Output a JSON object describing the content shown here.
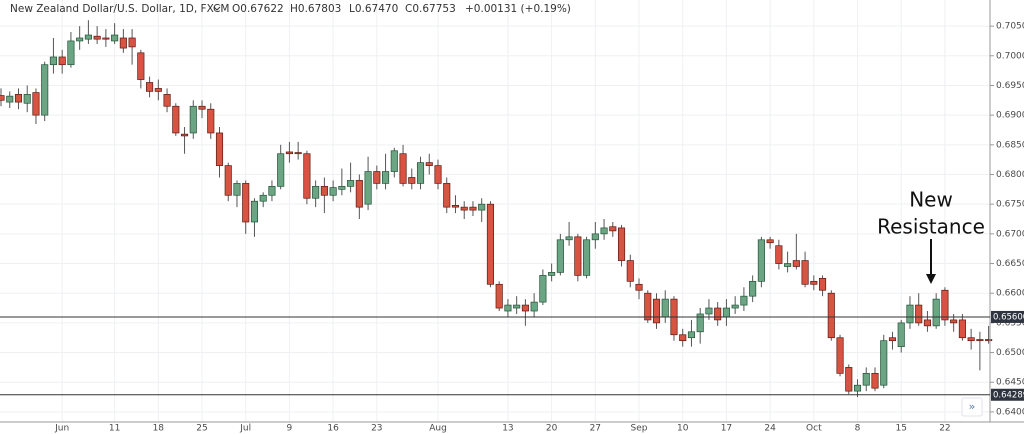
{
  "chart_data": {
    "type": "candlestick",
    "symbol": "New Zealand Dollar/U.S. Dollar, 1D, FXCM",
    "ohlc_header": [
      "O0.67622",
      "H0.67803",
      "L0.67470",
      "C0.67753",
      "+0.00131 (+0.19%)"
    ],
    "annotation": [
      "New",
      "Resistance"
    ],
    "categories": [
      null,
      null,
      null,
      null,
      null,
      null,
      null,
      "Jun",
      null,
      null,
      null,
      null,
      null,
      "11",
      null,
      null,
      null,
      null,
      "18",
      null,
      null,
      null,
      null,
      "25",
      null,
      null,
      null,
      null,
      "Jul",
      null,
      null,
      null,
      null,
      "9",
      null,
      null,
      null,
      null,
      "16",
      null,
      null,
      null,
      null,
      "23",
      null,
      null,
      null,
      null,
      null,
      null,
      "Aug",
      null,
      null,
      null,
      null,
      null,
      null,
      null,
      "13",
      null,
      null,
      null,
      null,
      "20",
      null,
      null,
      null,
      null,
      "27",
      null,
      null,
      null,
      null,
      "Sep",
      null,
      null,
      null,
      null,
      "10",
      null,
      null,
      null,
      null,
      "17",
      null,
      null,
      null,
      null,
      "24",
      null,
      null,
      null,
      null,
      "Oct",
      null,
      null,
      null,
      null,
      "8",
      null,
      null,
      null,
      null,
      "15",
      null,
      null,
      null,
      null,
      "22",
      null,
      null,
      null,
      null,
      null
    ],
    "open": [
      0.6933,
      0.6922,
      0.6935,
      0.692,
      0.6938,
      0.69,
      0.6985,
      0.6998,
      0.6985,
      0.7025,
      0.7028,
      0.7033,
      0.703,
      0.7025,
      0.703,
      0.703,
      0.7005,
      0.6955,
      0.6945,
      0.6935,
      0.6915,
      0.6868,
      0.687,
      0.6915,
      0.691,
      0.687,
      0.6815,
      0.6765,
      0.6785,
      0.672,
      0.6755,
      0.6765,
      0.678,
      0.6838,
      0.6837,
      0.6835,
      0.676,
      0.678,
      0.6765,
      0.6775,
      0.678,
      0.679,
      0.675,
      0.6805,
      0.6785,
      0.6805,
      0.6835,
      0.6795,
      0.6785,
      0.682,
      0.6815,
      0.6785,
      0.6748,
      0.6745,
      0.6745,
      0.674,
      0.675,
      0.6615,
      0.657,
      0.6575,
      0.658,
      0.657,
      0.6585,
      0.663,
      0.6635,
      0.669,
      0.6695,
      0.663,
      0.669,
      0.67,
      0.6712,
      0.671,
      0.6655,
      0.6615,
      0.66,
      0.659,
      0.656,
      0.659,
      0.653,
      0.6525,
      0.6535,
      0.6565,
      0.6575,
      0.656,
      0.6575,
      0.658,
      0.6595,
      0.662,
      0.669,
      0.668,
      0.6645,
      0.6655,
      0.6655,
      0.662,
      0.6625,
      0.66,
      0.6525,
      0.6475,
      0.6435,
      0.6445,
      0.6465,
      0.6445,
      0.6525,
      0.651,
      0.655,
      0.658,
      0.6555,
      0.6545,
      0.6605,
      0.6555,
      0.6555,
      0.6525,
      0.6522,
      0.6522
    ],
    "high": [
      0.6945,
      0.694,
      0.6945,
      0.695,
      0.6945,
      0.699,
      0.703,
      0.701,
      0.704,
      0.705,
      0.706,
      0.705,
      0.7045,
      0.7055,
      0.7045,
      0.7045,
      0.701,
      0.6965,
      0.696,
      0.6945,
      0.692,
      0.688,
      0.6925,
      0.6925,
      0.692,
      0.688,
      0.682,
      0.679,
      0.679,
      0.676,
      0.677,
      0.679,
      0.685,
      0.6855,
      0.6855,
      0.684,
      0.679,
      0.6795,
      0.679,
      0.681,
      0.682,
      0.68,
      0.683,
      0.6815,
      0.6835,
      0.6845,
      0.685,
      0.681,
      0.683,
      0.6835,
      0.6825,
      0.6795,
      0.6765,
      0.6755,
      0.6755,
      0.676,
      0.6755,
      0.662,
      0.659,
      0.6595,
      0.659,
      0.66,
      0.664,
      0.665,
      0.67,
      0.672,
      0.67,
      0.6695,
      0.672,
      0.6725,
      0.672,
      0.6715,
      0.6665,
      0.6625,
      0.6605,
      0.66,
      0.6605,
      0.6595,
      0.654,
      0.6555,
      0.6575,
      0.659,
      0.6585,
      0.659,
      0.6595,
      0.661,
      0.663,
      0.6695,
      0.6695,
      0.669,
      0.667,
      0.67,
      0.667,
      0.663,
      0.663,
      0.6605,
      0.653,
      0.648,
      0.6455,
      0.6475,
      0.6475,
      0.653,
      0.6535,
      0.6555,
      0.6595,
      0.66,
      0.657,
      0.66,
      0.661,
      0.6565,
      0.6565,
      0.654,
      0.6535,
      0.6545
    ],
    "low": [
      0.6915,
      0.6912,
      0.691,
      0.6905,
      0.6885,
      0.689,
      0.697,
      0.697,
      0.698,
      0.701,
      0.702,
      0.702,
      0.7015,
      0.702,
      0.7005,
      0.6985,
      0.6945,
      0.693,
      0.6925,
      0.6905,
      0.6865,
      0.6835,
      0.686,
      0.6895,
      0.686,
      0.6795,
      0.6755,
      0.6745,
      0.67,
      0.6695,
      0.6745,
      0.6755,
      0.6775,
      0.682,
      0.6825,
      0.675,
      0.6745,
      0.6735,
      0.6755,
      0.6765,
      0.677,
      0.6725,
      0.674,
      0.6775,
      0.6775,
      0.6795,
      0.678,
      0.6775,
      0.6775,
      0.68,
      0.6775,
      0.6735,
      0.6735,
      0.6725,
      0.673,
      0.672,
      0.661,
      0.657,
      0.656,
      0.6565,
      0.6545,
      0.656,
      0.658,
      0.662,
      0.663,
      0.668,
      0.662,
      0.6625,
      0.6675,
      0.669,
      0.6695,
      0.6645,
      0.661,
      0.659,
      0.655,
      0.654,
      0.655,
      0.652,
      0.651,
      0.651,
      0.6515,
      0.6555,
      0.6545,
      0.6545,
      0.6565,
      0.657,
      0.6585,
      0.661,
      0.6675,
      0.664,
      0.6635,
      0.664,
      0.661,
      0.6605,
      0.6595,
      0.652,
      0.646,
      0.643,
      0.6425,
      0.6435,
      0.6435,
      0.644,
      0.6505,
      0.65,
      0.654,
      0.6545,
      0.6535,
      0.654,
      0.6545,
      0.6535,
      0.652,
      0.6505,
      0.647,
      0.6515
    ],
    "close": [
      0.6925,
      0.6932,
      0.6922,
      0.6935,
      0.69,
      0.6985,
      0.6998,
      0.6985,
      0.7025,
      0.703,
      0.7035,
      0.7028,
      0.7028,
      0.7035,
      0.7013,
      0.7015,
      0.696,
      0.694,
      0.694,
      0.6915,
      0.687,
      0.6865,
      0.6915,
      0.691,
      0.687,
      0.6815,
      0.6765,
      0.6785,
      0.672,
      0.6755,
      0.6765,
      0.678,
      0.6835,
      0.6835,
      0.6835,
      0.676,
      0.678,
      0.6765,
      0.6778,
      0.678,
      0.679,
      0.6745,
      0.6805,
      0.6785,
      0.6805,
      0.684,
      0.6785,
      0.6785,
      0.682,
      0.6815,
      0.6785,
      0.6745,
      0.6745,
      0.674,
      0.674,
      0.675,
      0.6615,
      0.6575,
      0.658,
      0.658,
      0.657,
      0.6585,
      0.663,
      0.6635,
      0.669,
      0.6695,
      0.663,
      0.669,
      0.67,
      0.671,
      0.6705,
      0.6655,
      0.662,
      0.6605,
      0.6555,
      0.655,
      0.659,
      0.653,
      0.652,
      0.6535,
      0.6565,
      0.6575,
      0.6555,
      0.6575,
      0.658,
      0.6595,
      0.662,
      0.669,
      0.6685,
      0.665,
      0.665,
      0.6645,
      0.6615,
      0.6615,
      0.6605,
      0.6525,
      0.6465,
      0.6435,
      0.6445,
      0.6465,
      0.644,
      0.652,
      0.652,
      0.655,
      0.658,
      0.655,
      0.6545,
      0.659,
      0.6555,
      0.655,
      0.6525,
      0.652,
      0.652,
      0.652
    ],
    "up_color": "#6ba583",
    "down_color": "#d75442",
    "ylim": [
      0.6383,
      0.7094
    ],
    "yticks": [
      {
        "value": 0.64,
        "label": "0.64000"
      },
      {
        "value": 0.645,
        "label": "0.64500"
      },
      {
        "value": 0.65,
        "label": "0.65000"
      },
      {
        "value": 0.655,
        "label": "0.65500"
      },
      {
        "value": 0.66,
        "label": "0.66000"
      },
      {
        "value": 0.665,
        "label": "0.66500"
      },
      {
        "value": 0.67,
        "label": "0.67000"
      },
      {
        "value": 0.675,
        "label": "0.67500"
      },
      {
        "value": 0.68,
        "label": "0.68000"
      },
      {
        "value": 0.685,
        "label": "0.68500"
      },
      {
        "value": 0.69,
        "label": "0.69000"
      },
      {
        "value": 0.695,
        "label": "0.69500"
      },
      {
        "value": 0.7,
        "label": "0.70000"
      },
      {
        "value": 0.705,
        "label": "0.70500"
      }
    ],
    "hlines": [
      {
        "value": 0.656,
        "label": "0.65600"
      },
      {
        "value": 0.64289,
        "label": "0.64289"
      }
    ],
    "grid": true
  }
}
